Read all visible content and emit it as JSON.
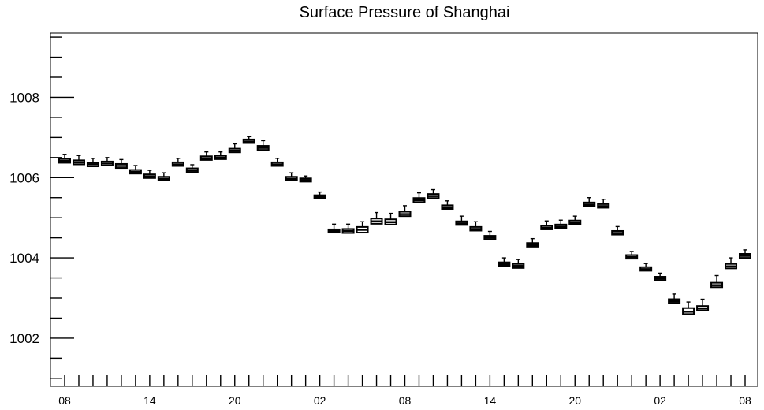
{
  "chart_data": {
    "type": "box",
    "title": "Surface Pressure of Shanghai",
    "xlabel": "",
    "ylabel": "",
    "ylim": [
      1000.8,
      1009.6
    ],
    "y_ticks": [
      1002,
      1004,
      1006,
      1008
    ],
    "y_tick_labels": [
      "1002",
      "1004",
      "1006",
      "1008"
    ],
    "x_tick_labels": [
      "08",
      "14",
      "20",
      "02",
      "08",
      "14",
      "20",
      "02",
      "08"
    ],
    "x_tick_label_positions": [
      0,
      6,
      12,
      18,
      24,
      30,
      36,
      42,
      48
    ],
    "grid": false,
    "series": [
      {
        "median": [
          1006.42,
          1006.38,
          1006.33,
          1006.35,
          1006.29,
          1006.14,
          1006.03,
          1005.97,
          1006.33,
          1006.18,
          1006.48,
          1006.5,
          1006.67,
          1006.9,
          1006.74,
          1006.33,
          1005.97,
          1005.94,
          1005.52,
          1004.67,
          1004.67,
          1004.7,
          1004.91,
          1004.89,
          1005.09,
          1005.44,
          1005.54,
          1005.26,
          1004.86,
          1004.72,
          1004.5,
          1003.84,
          1003.8,
          1004.32,
          1004.75,
          1004.78,
          1004.88,
          1005.33,
          1005.29,
          1004.62,
          1004.02,
          1003.72,
          1003.49,
          1002.92,
          1002.66,
          1002.74,
          1003.32,
          1003.79,
          1004.05
        ],
        "low": [
          1006.37,
          1006.33,
          1006.28,
          1006.3,
          1006.24,
          1006.1,
          1005.99,
          1005.93,
          1006.29,
          1006.14,
          1006.44,
          1006.46,
          1006.63,
          1006.86,
          1006.69,
          1006.29,
          1005.93,
          1005.9,
          1005.49,
          1004.63,
          1004.62,
          1004.63,
          1004.85,
          1004.83,
          1005.04,
          1005.39,
          1005.49,
          1005.22,
          1004.82,
          1004.68,
          1004.46,
          1003.8,
          1003.75,
          1004.28,
          1004.71,
          1004.74,
          1004.84,
          1005.29,
          1005.25,
          1004.58,
          1003.98,
          1003.68,
          1003.45,
          1002.88,
          1002.6,
          1002.69,
          1003.27,
          1003.74,
          1004.0
        ],
        "high": [
          1006.47,
          1006.43,
          1006.37,
          1006.4,
          1006.34,
          1006.19,
          1006.08,
          1006.02,
          1006.38,
          1006.23,
          1006.53,
          1006.55,
          1006.72,
          1006.95,
          1006.79,
          1006.38,
          1006.02,
          1005.98,
          1005.56,
          1004.71,
          1004.72,
          1004.77,
          1004.98,
          1004.96,
          1005.15,
          1005.49,
          1005.59,
          1005.31,
          1004.91,
          1004.77,
          1004.55,
          1003.89,
          1003.85,
          1004.37,
          1004.8,
          1004.83,
          1004.93,
          1005.38,
          1005.34,
          1004.67,
          1004.07,
          1003.77,
          1003.53,
          1002.97,
          1002.75,
          1002.8,
          1003.38,
          1003.85,
          1004.1
        ],
        "whisker_top": [
          1006.58,
          1006.55,
          1006.48,
          1006.5,
          1006.45,
          1006.3,
          1006.18,
          1006.12,
          1006.48,
          1006.32,
          1006.64,
          1006.64,
          1006.84,
          1007.02,
          1006.92,
          1006.48,
          1006.12,
          1006.04,
          1005.64,
          1004.84,
          1004.84,
          1004.9,
          1005.13,
          1005.11,
          1005.3,
          1005.62,
          1005.7,
          1005.42,
          1005.04,
          1004.9,
          1004.66,
          1004.0,
          1003.96,
          1004.48,
          1004.92,
          1004.94,
          1005.04,
          1005.5,
          1005.46,
          1004.78,
          1004.16,
          1003.86,
          1003.62,
          1003.1,
          1002.9,
          1002.97,
          1003.56,
          1004.0,
          1004.2
        ]
      }
    ]
  }
}
